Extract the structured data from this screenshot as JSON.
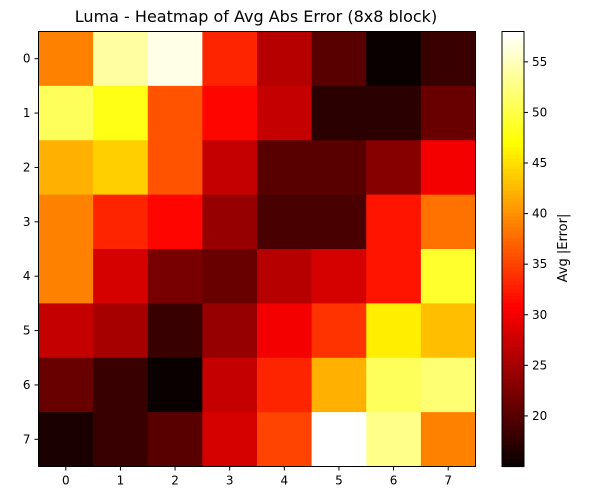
{
  "chart_data": {
    "type": "heatmap",
    "title": "Luma - Heatmap of Avg Abs Error (8x8 block)",
    "x_categories": [
      "0",
      "1",
      "2",
      "3",
      "4",
      "5",
      "6",
      "7"
    ],
    "y_categories": [
      "0",
      "1",
      "2",
      "3",
      "4",
      "5",
      "6",
      "7"
    ],
    "values": [
      [
        39,
        54,
        57,
        33,
        26,
        20,
        15,
        18
      ],
      [
        51,
        48,
        36,
        31,
        27,
        17,
        17,
        21
      ],
      [
        42,
        44,
        36,
        27,
        20,
        20,
        23,
        30
      ],
      [
        39,
        33,
        31,
        24,
        19,
        19,
        32,
        38
      ],
      [
        39,
        28,
        22,
        21,
        26,
        28,
        32,
        49
      ],
      [
        27,
        25,
        18,
        24,
        30,
        34,
        46,
        43
      ],
      [
        21,
        18,
        15,
        27,
        33,
        42,
        51,
        52
      ],
      [
        16,
        18,
        20,
        28,
        35,
        58,
        53,
        39
      ]
    ],
    "colormap": "hot",
    "vmin": 15,
    "vmax": 58,
    "colorbar": {
      "label": "Avg |Error|",
      "ticks": [
        20,
        25,
        30,
        35,
        40,
        45,
        50,
        55
      ]
    },
    "grid": false
  }
}
